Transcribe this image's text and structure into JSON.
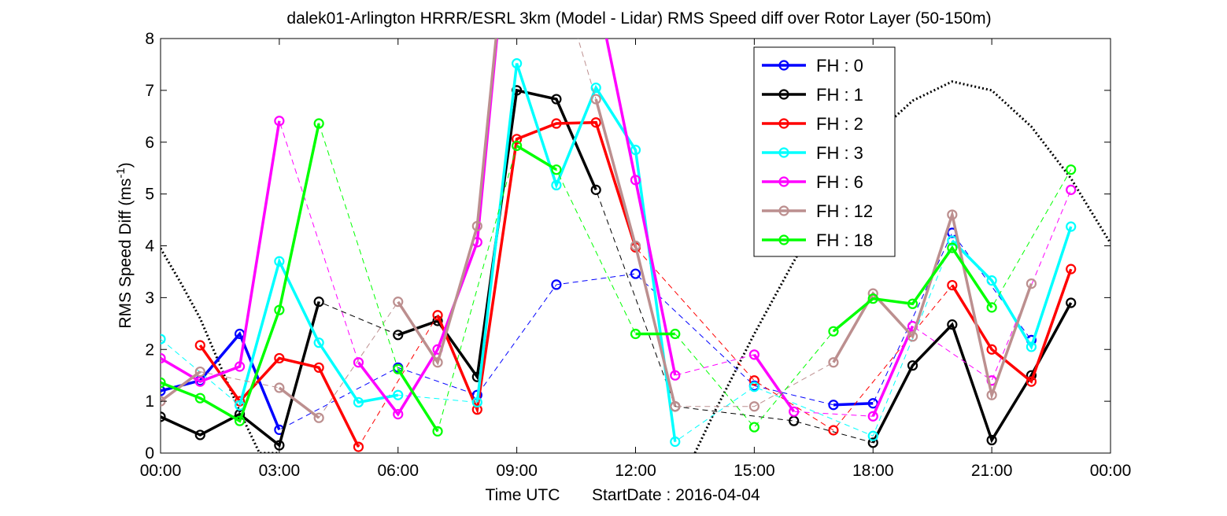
{
  "chart_data": {
    "type": "line",
    "title": "dalek01-Arlington HRRR/ESRL 3km (Model - Lidar) RMS Speed diff over Rotor Layer (50-150m)",
    "xlabel": "Time UTC",
    "start_date_label": "StartDate : 2016-04-04",
    "ylabel": "RMS Speed Diff (ms",
    "ylabel_sup": "-1",
    "ylabel_end": ")",
    "xlim": [
      0,
      24
    ],
    "ylim": [
      0,
      8
    ],
    "x_ticks": [
      0,
      3,
      6,
      9,
      12,
      15,
      18,
      21,
      24
    ],
    "x_tick_labels": [
      "00:00",
      "03:00",
      "06:00",
      "09:00",
      "12:00",
      "15:00",
      "18:00",
      "21:00",
      "00:00"
    ],
    "y_ticks": [
      0,
      1,
      2,
      3,
      4,
      5,
      6,
      7,
      8
    ],
    "y_tick_labels": [
      "0",
      "1",
      "2",
      "3",
      "4",
      "5",
      "6",
      "7",
      "8"
    ],
    "x_unit": "hours UTC",
    "legend_position": "top-right",
    "grid": false,
    "series": [
      {
        "name": "FH : 0",
        "color": "#0000ff",
        "values": [
          1.2,
          1.4,
          2.3,
          0.45,
          null,
          null,
          1.65,
          null,
          1.12,
          null,
          3.25,
          null,
          3.46,
          null,
          null,
          1.3,
          null,
          0.93,
          0.96,
          null,
          4.25,
          null,
          2.18,
          null
        ]
      },
      {
        "name": "FH : 1",
        "color": "#000000",
        "values": [
          0.7,
          0.35,
          0.75,
          0.15,
          2.92,
          null,
          2.28,
          2.55,
          1.47,
          7.0,
          6.83,
          5.08,
          null,
          0.9,
          null,
          null,
          0.62,
          null,
          0.2,
          1.69,
          2.48,
          0.25,
          1.5,
          2.9
        ]
      },
      {
        "name": "FH : 2",
        "color": "#ff0000",
        "values": [
          null,
          2.08,
          1.0,
          1.83,
          1.65,
          0.12,
          null,
          2.66,
          0.84,
          6.06,
          6.36,
          6.38,
          3.97,
          null,
          null,
          1.4,
          null,
          0.44,
          null,
          null,
          3.24,
          2.0,
          1.38,
          3.55
        ]
      },
      {
        "name": "FH : 3",
        "color": "#00ffff",
        "values": [
          2.2,
          null,
          0.92,
          3.7,
          2.13,
          0.98,
          1.12,
          null,
          0.98,
          7.52,
          5.17,
          7.05,
          5.85,
          0.22,
          null,
          1.28,
          null,
          null,
          0.33,
          null,
          4.1,
          3.33,
          2.05,
          4.37
        ]
      },
      {
        "name": "FH : 6",
        "color": "#ff00ff",
        "values": [
          1.83,
          1.38,
          1.67,
          6.41,
          null,
          1.75,
          0.75,
          2.0,
          4.07,
          12.0,
          null,
          9.0,
          5.27,
          1.5,
          null,
          1.9,
          0.8,
          null,
          0.71,
          2.45,
          null,
          1.4,
          null,
          5.08
        ]
      },
      {
        "name": "FH : 12",
        "color": "#bc8f8f",
        "values": [
          1.0,
          1.57,
          null,
          1.26,
          0.68,
          null,
          2.92,
          1.75,
          4.38,
          12.0,
          null,
          6.83,
          4.0,
          0.9,
          null,
          0.9,
          null,
          1.75,
          3.08,
          2.25,
          4.6,
          1.12,
          3.27,
          null
        ]
      },
      {
        "name": "FH : 18",
        "color": "#00ff00",
        "values": [
          1.36,
          1.06,
          0.62,
          2.76,
          6.36,
          null,
          1.62,
          0.42,
          null,
          5.93,
          5.47,
          null,
          2.3,
          2.3,
          null,
          0.5,
          null,
          2.35,
          2.98,
          2.88,
          3.96,
          2.81,
          null,
          5.47
        ]
      }
    ],
    "background_curve": {
      "style": "dotted",
      "color": "#000000",
      "note_x": [
        0,
        0.5,
        1.0,
        1.5,
        2.0,
        2.5,
        3.0,
        13.5,
        14.0,
        15.0,
        16.0,
        17.0,
        18.0,
        19.0,
        20.0,
        21.0,
        22.0,
        23.0,
        24.0
      ],
      "note_y": [
        3.95,
        3.3,
        2.6,
        1.7,
        0.8,
        0.0,
        0.0,
        0.0,
        0.8,
        2.3,
        3.7,
        5.0,
        6.1,
        6.8,
        7.17,
        7.0,
        6.3,
        5.3,
        4.05
      ]
    }
  }
}
